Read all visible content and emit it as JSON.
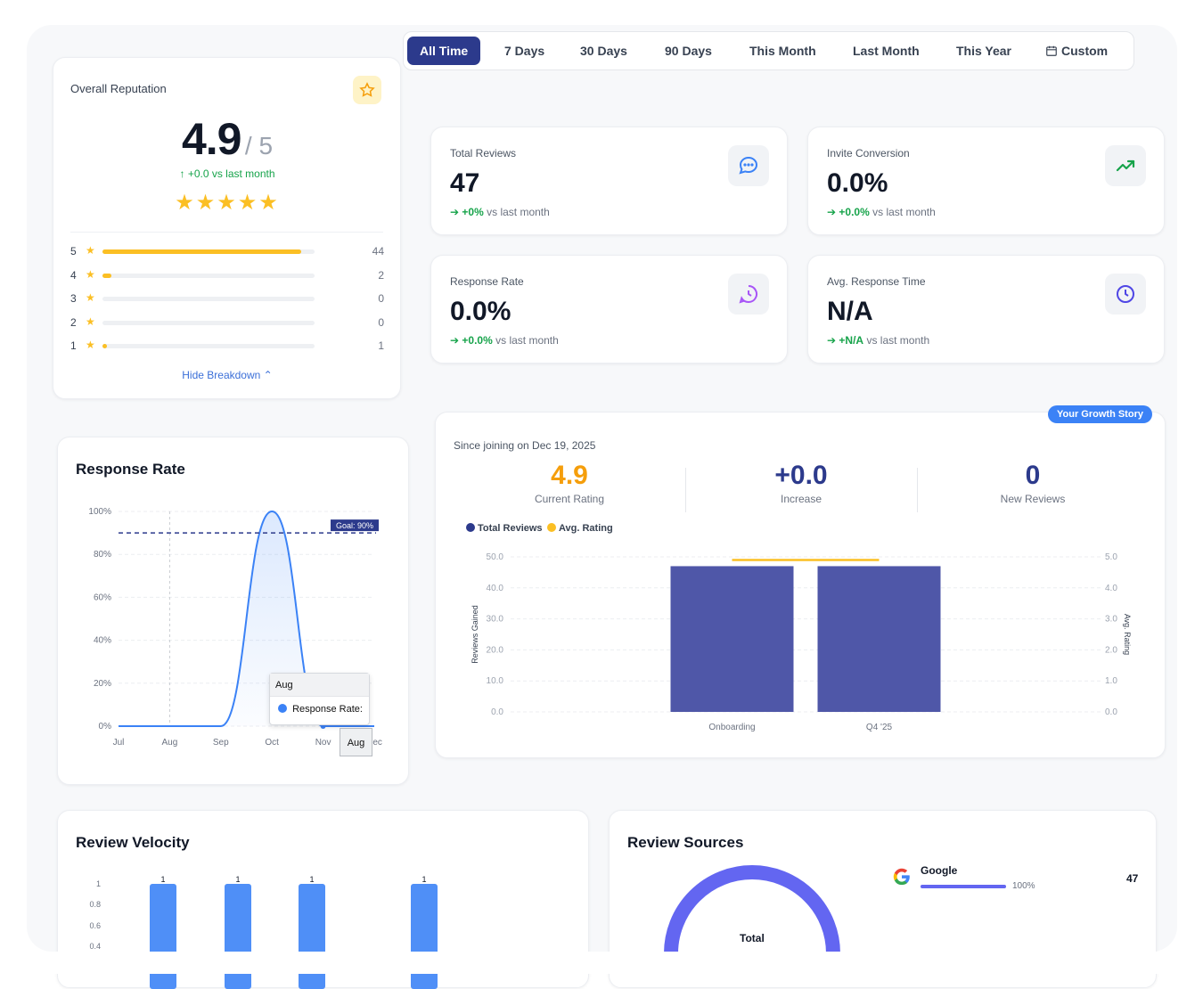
{
  "reputation": {
    "title": "Overall Reputation",
    "score": "4.9",
    "out_of": "/ 5",
    "trend": "+0.0 vs last month",
    "stars": "★★★★★",
    "breakdown": [
      {
        "stars": "5",
        "count": "44",
        "fraction": 0.936
      },
      {
        "stars": "4",
        "count": "2",
        "fraction": 0.043
      },
      {
        "stars": "3",
        "count": "0",
        "fraction": 0
      },
      {
        "stars": "2",
        "count": "0",
        "fraction": 0
      },
      {
        "stars": "1",
        "count": "1",
        "fraction": 0.021
      }
    ],
    "toggle_label": "Hide Breakdown"
  },
  "tabs": [
    "All Time",
    "7 Days",
    "30 Days",
    "90 Days",
    "This Month",
    "Last Month",
    "This Year",
    "Custom"
  ],
  "active_tab": "All Time",
  "stats": {
    "total_reviews": {
      "label": "Total Reviews",
      "value": "47",
      "delta": "+0%",
      "suffix": "vs last month"
    },
    "invite_conversion": {
      "label": "Invite Conversion",
      "value": "0.0%",
      "delta": "+0.0%",
      "suffix": "vs last month"
    },
    "response_rate": {
      "label": "Response Rate",
      "value": "0.0%",
      "delta": "+0.0%",
      "suffix": "vs last month"
    },
    "avg_response_time": {
      "label": "Avg. Response Time",
      "value": "N/A",
      "delta": "+N/A",
      "suffix": "vs last month"
    }
  },
  "colors": {
    "accent": "#2c3a8c",
    "positive": "#16a34a",
    "star": "#fbbf24",
    "bar": "#4f57a8",
    "line": "#3b82f6",
    "rating": "#f59e0b"
  },
  "growth": {
    "badge": "Your Growth Story",
    "since": "Since joining on Dec 19, 2025",
    "current_rating": {
      "value": "4.9",
      "label": "Current Rating"
    },
    "increase": {
      "value": "+0.0",
      "label": "Increase"
    },
    "new_reviews": {
      "value": "0",
      "label": "New Reviews"
    },
    "legend": [
      "Total Reviews",
      "Avg. Rating"
    ]
  },
  "response_chart": {
    "title": "Response Rate",
    "goal_label": "Goal: 90%",
    "tooltip_title": "Aug",
    "tooltip_series": "Response Rate:",
    "hover_label": "Aug"
  },
  "velocity": {
    "title": "Review Velocity"
  },
  "sources": {
    "title": "Review Sources",
    "center_label": "Total",
    "items": [
      {
        "name": "Google",
        "percent": "100%",
        "count": "47",
        "fraction": 1.0
      }
    ]
  },
  "chart_data": [
    {
      "type": "line",
      "title": "Response Rate",
      "x": [
        "Jul",
        "Aug",
        "Sep",
        "Oct",
        "Nov",
        "Dec"
      ],
      "series": [
        {
          "name": "Response Rate",
          "values": [
            0,
            0,
            0,
            100,
            0,
            0
          ]
        }
      ],
      "ytick_labels": [
        "0%",
        "20%",
        "40%",
        "60%",
        "80%",
        "100%"
      ],
      "ylim": [
        0,
        100
      ],
      "goal": 90,
      "grid": true
    },
    {
      "type": "bar",
      "categories": [
        "Onboarding",
        "Q4 '25"
      ],
      "series": [
        {
          "name": "Total Reviews",
          "values": [
            47,
            47
          ]
        },
        {
          "name": "Avg. Rating",
          "values": [
            4.9,
            4.9
          ]
        }
      ],
      "ylabel": "Reviews Gained",
      "y2label": "Avg. Rating",
      "ylim": [
        0,
        50
      ],
      "y2lim": [
        0,
        5
      ],
      "ytick_labels": [
        "0.0",
        "10.0",
        "20.0",
        "30.0",
        "40.0",
        "50.0"
      ],
      "y2tick_labels": [
        "0.0",
        "1.0",
        "2.0",
        "3.0",
        "4.0",
        "5.0"
      ],
      "legend": "top-left"
    },
    {
      "type": "bar",
      "title": "Review Velocity",
      "values": [
        1,
        1,
        1,
        1
      ],
      "ytick_labels": [
        "0.4",
        "0.6",
        "0.8",
        "1"
      ],
      "data_labels": [
        "1",
        "1",
        "1",
        "1"
      ]
    },
    {
      "type": "pie",
      "title": "Review Sources",
      "categories": [
        "Google"
      ],
      "values": [
        47
      ]
    }
  ]
}
